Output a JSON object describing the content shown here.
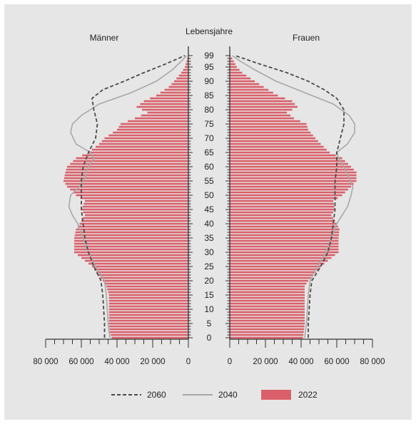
{
  "chart_data": {
    "type": "population-pyramid",
    "title": "",
    "left_label": "Männer",
    "right_label": "Frauen",
    "center_label": "Lebensjahre",
    "age_ticks": [
      "0",
      "5",
      "10",
      "15",
      "20",
      "25",
      "30",
      "35",
      "40",
      "45",
      "50",
      "55",
      "60",
      "65",
      "70",
      "75",
      "80",
      "85",
      "90",
      "95",
      "99"
    ],
    "x_ticks_left": [
      "80 000",
      "60 000",
      "40 000",
      "20 000",
      "0"
    ],
    "x_ticks_right": [
      "0",
      "20 000",
      "40 000",
      "60 000",
      "80 000"
    ],
    "x_max": 80000,
    "legend": [
      "2060",
      "2040",
      "2022"
    ],
    "colors": {
      "bar_2022": "#d9606b",
      "line_2040": "#a8a8a8",
      "line_2060": "#4a4a4a"
    },
    "series": [
      {
        "name": "2022",
        "kind": "bars",
        "male": [
          [
            0,
            43000
          ],
          [
            2,
            44000
          ],
          [
            5,
            44500
          ],
          [
            10,
            44500
          ],
          [
            15,
            44500
          ],
          [
            18,
            46000
          ],
          [
            20,
            48000
          ],
          [
            25,
            54000
          ],
          [
            28,
            60000
          ],
          [
            30,
            64000
          ],
          [
            35,
            64000
          ],
          [
            38,
            63000
          ],
          [
            40,
            61000
          ],
          [
            43,
            58000
          ],
          [
            45,
            60000
          ],
          [
            48,
            58000
          ],
          [
            50,
            63000
          ],
          [
            53,
            68000
          ],
          [
            55,
            70000
          ],
          [
            58,
            69000
          ],
          [
            60,
            68000
          ],
          [
            63,
            63000
          ],
          [
            65,
            56000
          ],
          [
            68,
            50000
          ],
          [
            70,
            47000
          ],
          [
            73,
            40000
          ],
          [
            75,
            38000
          ],
          [
            77,
            30000
          ],
          [
            79,
            23000
          ],
          [
            81,
            29000
          ],
          [
            83,
            25000
          ],
          [
            85,
            18000
          ],
          [
            88,
            11000
          ],
          [
            90,
            8000
          ],
          [
            93,
            4000
          ],
          [
            95,
            2000
          ],
          [
            99,
            200
          ]
        ],
        "female": [
          [
            0,
            41000
          ],
          [
            2,
            41500
          ],
          [
            5,
            42000
          ],
          [
            10,
            42000
          ],
          [
            15,
            42000
          ],
          [
            18,
            42000
          ],
          [
            20,
            44000
          ],
          [
            25,
            51000
          ],
          [
            28,
            57000
          ],
          [
            30,
            61000
          ],
          [
            35,
            61000
          ],
          [
            38,
            61500
          ],
          [
            40,
            60000
          ],
          [
            43,
            57000
          ],
          [
            45,
            59000
          ],
          [
            48,
            58000
          ],
          [
            50,
            63000
          ],
          [
            53,
            68000
          ],
          [
            55,
            71000
          ],
          [
            58,
            71000
          ],
          [
            60,
            68000
          ],
          [
            63,
            63000
          ],
          [
            65,
            56000
          ],
          [
            68,
            51000
          ],
          [
            70,
            48000
          ],
          [
            73,
            44000
          ],
          [
            75,
            43000
          ],
          [
            77,
            36000
          ],
          [
            79,
            32000
          ],
          [
            81,
            38000
          ],
          [
            83,
            35000
          ],
          [
            85,
            27000
          ],
          [
            88,
            19000
          ],
          [
            90,
            14000
          ],
          [
            93,
            7000
          ],
          [
            95,
            4000
          ],
          [
            99,
            500
          ]
        ]
      },
      {
        "name": "2040",
        "kind": "line",
        "male": [
          [
            0,
            44000
          ],
          [
            5,
            45000
          ],
          [
            10,
            45500
          ],
          [
            15,
            46000
          ],
          [
            20,
            47000
          ],
          [
            25,
            52000
          ],
          [
            30,
            56000
          ],
          [
            35,
            59000
          ],
          [
            40,
            62000
          ],
          [
            43,
            65000
          ],
          [
            46,
            67000
          ],
          [
            50,
            66000
          ],
          [
            53,
            61000
          ],
          [
            56,
            58000
          ],
          [
            60,
            56000
          ],
          [
            63,
            53000
          ],
          [
            65,
            55000
          ],
          [
            68,
            63000
          ],
          [
            72,
            66000
          ],
          [
            75,
            65000
          ],
          [
            78,
            60000
          ],
          [
            82,
            50000
          ],
          [
            86,
            32000
          ],
          [
            90,
            18000
          ],
          [
            94,
            9000
          ],
          [
            97,
            4000
          ],
          [
            99,
            1000
          ]
        ],
        "female": [
          [
            0,
            42000
          ],
          [
            5,
            43000
          ],
          [
            10,
            43500
          ],
          [
            15,
            44000
          ],
          [
            20,
            45000
          ],
          [
            25,
            49000
          ],
          [
            30,
            54000
          ],
          [
            35,
            57000
          ],
          [
            40,
            60000
          ],
          [
            43,
            63000
          ],
          [
            46,
            66000
          ],
          [
            50,
            68000
          ],
          [
            53,
            69000
          ],
          [
            56,
            67000
          ],
          [
            60,
            64000
          ],
          [
            63,
            61000
          ],
          [
            65,
            60000
          ],
          [
            68,
            66000
          ],
          [
            72,
            70000
          ],
          [
            75,
            70000
          ],
          [
            78,
            67000
          ],
          [
            82,
            58000
          ],
          [
            86,
            42000
          ],
          [
            90,
            26000
          ],
          [
            94,
            14000
          ],
          [
            97,
            6000
          ],
          [
            99,
            1500
          ]
        ]
      },
      {
        "name": "2060",
        "kind": "line",
        "male": [
          [
            0,
            47000
          ],
          [
            5,
            47000
          ],
          [
            10,
            47500
          ],
          [
            15,
            48000
          ],
          [
            20,
            49000
          ],
          [
            25,
            53000
          ],
          [
            30,
            56000
          ],
          [
            35,
            58000
          ],
          [
            40,
            59000
          ],
          [
            45,
            60000
          ],
          [
            50,
            60000
          ],
          [
            55,
            60000
          ],
          [
            60,
            59000
          ],
          [
            65,
            56000
          ],
          [
            70,
            52000
          ],
          [
            75,
            51000
          ],
          [
            80,
            53000
          ],
          [
            84,
            54000
          ],
          [
            87,
            48000
          ],
          [
            90,
            36000
          ],
          [
            93,
            25000
          ],
          [
            96,
            13000
          ],
          [
            99,
            2000
          ]
        ],
        "female": [
          [
            0,
            44000
          ],
          [
            5,
            44000
          ],
          [
            10,
            44500
          ],
          [
            15,
            45000
          ],
          [
            20,
            46000
          ],
          [
            25,
            51000
          ],
          [
            30,
            55000
          ],
          [
            35,
            57000
          ],
          [
            40,
            58000
          ],
          [
            45,
            59000
          ],
          [
            50,
            59000
          ],
          [
            55,
            59000
          ],
          [
            60,
            60000
          ],
          [
            65,
            60000
          ],
          [
            70,
            62000
          ],
          [
            75,
            64000
          ],
          [
            80,
            64000
          ],
          [
            84,
            60000
          ],
          [
            87,
            53000
          ],
          [
            90,
            44000
          ],
          [
            93,
            32000
          ],
          [
            96,
            17000
          ],
          [
            99,
            3000
          ]
        ]
      }
    ]
  }
}
